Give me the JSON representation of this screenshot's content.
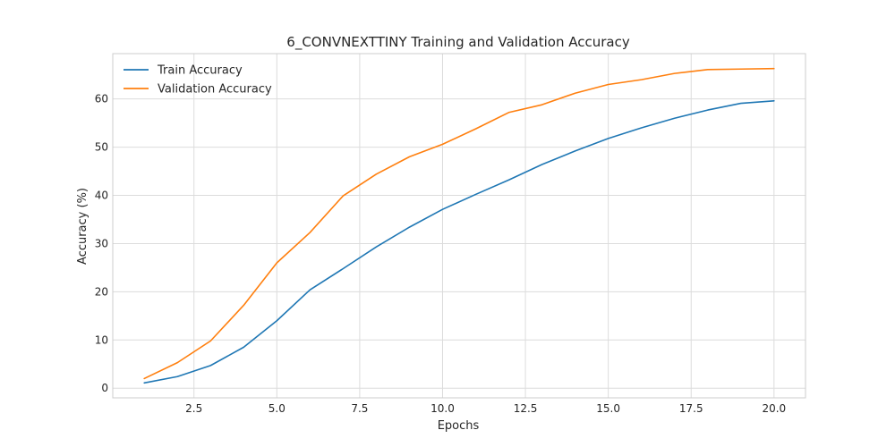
{
  "chart_data": {
    "type": "line",
    "title": "6_CONVNEXTTINY Training and Validation Accuracy",
    "xlabel": "Epochs",
    "ylabel": "Accuracy (%)",
    "xlim": [
      0.05,
      20.95
    ],
    "ylim": [
      -2.0,
      69.4
    ],
    "xticks": [
      2.5,
      5.0,
      7.5,
      10.0,
      12.5,
      15.0,
      17.5,
      20.0
    ],
    "xtick_labels": [
      "2.5",
      "5.0",
      "7.5",
      "10.0",
      "12.5",
      "15.0",
      "17.5",
      "20.0"
    ],
    "yticks": [
      0,
      10,
      20,
      30,
      40,
      50,
      60
    ],
    "ytick_labels": [
      "0",
      "10",
      "20",
      "30",
      "40",
      "50",
      "60"
    ],
    "grid": true,
    "legend_position": "top-left",
    "x": [
      1,
      2,
      3,
      4,
      5,
      6,
      7,
      8,
      9,
      10,
      11,
      12,
      13,
      14,
      15,
      16,
      17,
      18,
      19,
      20
    ],
    "series": [
      {
        "name": "Train Accuracy",
        "color": "#1f77b4",
        "values": [
          1.1,
          2.4,
          4.7,
          8.5,
          14.0,
          20.4,
          24.8,
          29.3,
          33.4,
          37.1,
          40.2,
          43.2,
          46.4,
          49.2,
          51.8,
          54.0,
          56.0,
          57.7,
          59.1,
          59.6
        ]
      },
      {
        "name": "Validation Accuracy",
        "color": "#ff7f0e",
        "values": [
          2.0,
          5.3,
          9.8,
          17.2,
          26.0,
          32.3,
          39.9,
          44.4,
          48.0,
          50.6,
          53.8,
          57.2,
          58.8,
          61.2,
          63.0,
          64.0,
          65.3,
          66.1,
          66.2,
          66.3
        ]
      }
    ]
  }
}
